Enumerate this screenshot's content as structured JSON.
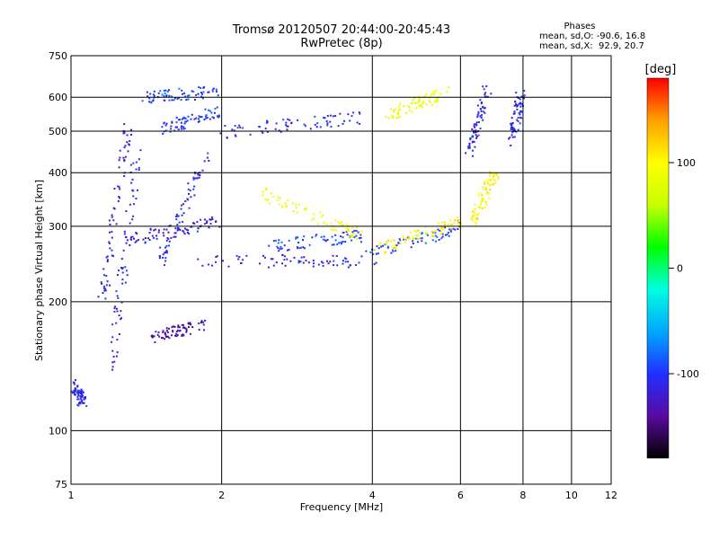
{
  "header": {
    "title_line1": "Tromsø 20120507 20:44:00-20:45:43",
    "title_line2": "RwPretec (8p)"
  },
  "phases_box": {
    "heading": "Phases",
    "line_o": "mean, sd,O: -90.6, 16.8",
    "line_x": "mean, sd,X:  92.9, 20.7"
  },
  "colorbar": {
    "unit_label": "[deg]",
    "tick_labels": [
      "100",
      "0",
      "-100"
    ],
    "tick_values": [
      100,
      0,
      -100
    ],
    "range": [
      -180,
      180
    ],
    "colors": [
      "#000000",
      "#5a0aa0",
      "#2030ff",
      "#00a8ff",
      "#00ffe0",
      "#00ff00",
      "#c8ff00",
      "#ffff00",
      "#ffa000",
      "#ff0000"
    ]
  },
  "chart_data": {
    "type": "scatter",
    "xlabel": "Frequency [MHz]",
    "ylabel": "Stationary phase Virtual Height [km]",
    "xscale": "log",
    "yscale": "log",
    "xlim": [
      1,
      12
    ],
    "ylim": [
      75,
      750
    ],
    "x_ticks": [
      1,
      2,
      4,
      6,
      8,
      10,
      12
    ],
    "y_ticks": [
      75,
      100,
      200,
      300,
      400,
      500,
      600,
      750
    ],
    "grid": true,
    "point_color_encoding": "phase [deg]",
    "series": [
      {
        "freq": [
          1.0,
          1.05,
          1.12
        ],
        "height": [
          128,
          118,
          110
        ],
        "phase": -110
      },
      {
        "freq": [
          1.15,
          1.3
        ],
        "height": [
          200,
          520
        ],
        "phase": -115
      },
      {
        "freq": [
          1.2,
          1.35
        ],
        "height": [
          140,
          450
        ],
        "phase": -110
      },
      {
        "freq": [
          1.5,
          1.85
        ],
        "height": [
          250,
          440
        ],
        "phase": -110
      },
      {
        "freq": [
          1.3,
          2.0
        ],
        "height": [
          280,
          310
        ],
        "phase": -115
      },
      {
        "freq": [
          1.4,
          1.95
        ],
        "height": [
          600,
          620
        ],
        "phase": -95
      },
      {
        "freq": [
          1.5,
          2.0
        ],
        "height": [
          505,
          560
        ],
        "phase": -100
      },
      {
        "freq": [
          2.0,
          3.8
        ],
        "height": [
          500,
          540
        ],
        "phase": -105
      },
      {
        "freq": [
          1.8,
          4.0
        ],
        "height": [
          250,
          250
        ],
        "phase": -110
      },
      {
        "freq": [
          2.5,
          3.8
        ],
        "height": [
          272,
          286
        ],
        "phase": -95
      },
      {
        "freq": [
          3.8,
          6.0
        ],
        "height": [
          258,
          300
        ],
        "phase": -95
      },
      {
        "freq": [
          4.0,
          6.0
        ],
        "height": [
          264,
          310
        ],
        "phase": 105
      },
      {
        "freq": [
          2.4,
          3.8
        ],
        "height": [
          360,
          286
        ],
        "phase": 90
      },
      {
        "freq": [
          6.3,
          7.0
        ],
        "height": [
          310,
          400
        ],
        "phase": 100
      },
      {
        "freq": [
          6.2,
          6.8
        ],
        "height": [
          450,
          640
        ],
        "phase": -110
      },
      {
        "freq": [
          7.6,
          7.9
        ],
        "height": [
          480,
          620
        ],
        "phase": -105
      },
      {
        "freq": [
          1.45,
          1.85
        ],
        "height": [
          165,
          178
        ],
        "phase": -135
      },
      {
        "freq": [
          4.2,
          5.6
        ],
        "height": [
          540,
          620
        ],
        "phase": 90
      }
    ]
  }
}
